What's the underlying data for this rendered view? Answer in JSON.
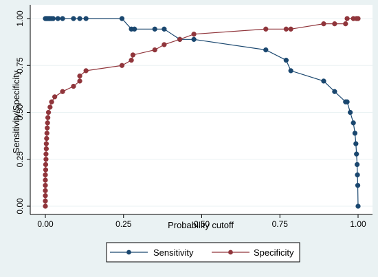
{
  "chart_data": {
    "type": "line",
    "xlabel": "Probability cutoff",
    "ylabel": "Sensitivity/Specificity",
    "xlim": [
      0,
      1
    ],
    "ylim": [
      0,
      1
    ],
    "x_ticks": [
      "0.00",
      "0.25",
      "0.50",
      "0.75",
      "1.00"
    ],
    "y_ticks": [
      "0.00",
      "0.25",
      "0.50",
      "0.75",
      "1.00"
    ],
    "grid": true,
    "legend_position": "bottom",
    "series": [
      {
        "name": "Sensitivity",
        "color": "#1a476f",
        "x": [
          0.0,
          0.003,
          0.006,
          0.009,
          0.012,
          0.015,
          0.02,
          0.025,
          0.04,
          0.055,
          0.09,
          0.11,
          0.13,
          0.245,
          0.275,
          0.285,
          0.35,
          0.38,
          0.43,
          0.475,
          0.705,
          0.77,
          0.785,
          0.89,
          0.925,
          0.96,
          0.965,
          0.975,
          0.985,
          0.99,
          0.993,
          0.995,
          0.997,
          0.998,
          0.999,
          1.0
        ],
        "y": [
          1.0,
          1.0,
          1.0,
          1.0,
          1.0,
          1.0,
          1.0,
          1.0,
          1.0,
          1.0,
          1.0,
          1.0,
          1.0,
          1.0,
          0.944,
          0.944,
          0.944,
          0.944,
          0.889,
          0.889,
          0.833,
          0.778,
          0.722,
          0.667,
          0.611,
          0.556,
          0.556,
          0.5,
          0.444,
          0.389,
          0.333,
          0.278,
          0.222,
          0.167,
          0.111,
          0.0
        ]
      },
      {
        "name": "Specificity",
        "color": "#90353b",
        "x": [
          0.0,
          0.0,
          0.0,
          0.0,
          0.0,
          0.0,
          0.0,
          0.001,
          0.001,
          0.002,
          0.002,
          0.003,
          0.003,
          0.004,
          0.005,
          0.006,
          0.007,
          0.008,
          0.01,
          0.015,
          0.02,
          0.03,
          0.055,
          0.09,
          0.11,
          0.11,
          0.13,
          0.245,
          0.275,
          0.28,
          0.35,
          0.38,
          0.43,
          0.475,
          0.705,
          0.77,
          0.785,
          0.89,
          0.925,
          0.96,
          0.965,
          0.985,
          0.995,
          1.0
        ],
        "y": [
          0.0,
          0.028,
          0.056,
          0.083,
          0.111,
          0.139,
          0.167,
          0.194,
          0.222,
          0.25,
          0.278,
          0.306,
          0.333,
          0.361,
          0.389,
          0.417,
          0.444,
          0.472,
          0.5,
          0.528,
          0.556,
          0.583,
          0.611,
          0.639,
          0.667,
          0.694,
          0.722,
          0.75,
          0.778,
          0.806,
          0.833,
          0.861,
          0.889,
          0.917,
          0.944,
          0.944,
          0.944,
          0.972,
          0.972,
          0.972,
          1.0,
          1.0,
          1.0,
          1.0
        ]
      }
    ]
  }
}
